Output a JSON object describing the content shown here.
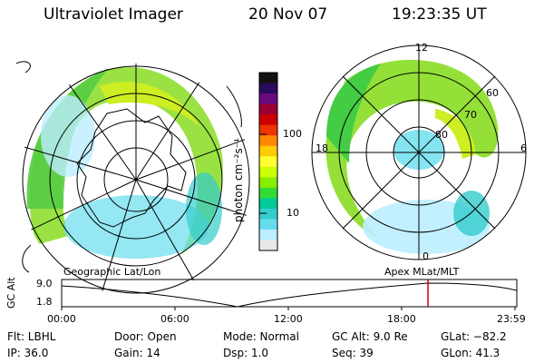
{
  "header": {
    "title": "Ultraviolet Imager",
    "date": "20 Nov 07",
    "time": "19:23:35 UT"
  },
  "colorbar": {
    "unit_label": "photon cm⁻²s⁻¹",
    "ticks": [
      "100",
      "10"
    ],
    "colors": [
      "#111111",
      "#2a0a5a",
      "#6a0a80",
      "#9b0030",
      "#cc0000",
      "#ee3300",
      "#ff8800",
      "#ffcc00",
      "#ffff33",
      "#ccff00",
      "#88ee00",
      "#33dd33",
      "#00cc99",
      "#33cccc",
      "#66ddee",
      "#bbeeff",
      "#e8e8e8"
    ]
  },
  "left_map": {
    "label": "Geographic Lat/Lon"
  },
  "right_map": {
    "label": "Apex  MLat/MLT",
    "mlt_labels": {
      "top": "12",
      "left": "18",
      "right": "6",
      "bottom": "0"
    },
    "mlat_labels": [
      "60",
      "70",
      "80"
    ]
  },
  "altitude_plot": {
    "ylabel": "GC Alt",
    "yticks": [
      "9.0",
      "1.8"
    ],
    "xticks": [
      "00:00",
      "06:00",
      "12:00",
      "18:00",
      "23:59"
    ],
    "marker_color": "#cc0000"
  },
  "status": {
    "row1": {
      "flt": "Flt: LBHL",
      "door": "Door: Open",
      "mode": "Mode: Normal",
      "gcalt": "GC Alt: 9.0 Re",
      "glat": "GLat: −82.2"
    },
    "row2": {
      "ip": "IP: 36.0",
      "gain": "Gain: 14",
      "dsp": "Dsp:    1.0",
      "seq": "Seq: 39",
      "glon": "GLon:  41.3"
    }
  }
}
